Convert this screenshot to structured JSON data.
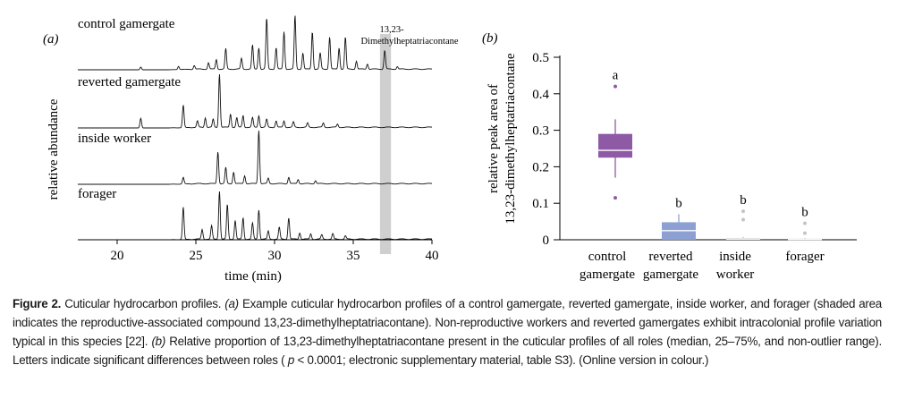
{
  "panel_a": {
    "label": "(a)",
    "ylabel": "relative abundance",
    "xlabel": "time (min)",
    "annotation_line1": "13,23-",
    "annotation_line2": "Dimethylheptatriacontane",
    "chart_data": {
      "type": "line",
      "title": "",
      "xlabel": "time (min)",
      "ylabel": "relative abundance",
      "xlim": [
        17.5,
        40
      ],
      "xticks": [
        20,
        25,
        30,
        35,
        40
      ],
      "shaded_range": [
        36.7,
        37.4
      ],
      "series": [
        {
          "name": "control gamergate",
          "peaks": [
            [
              21.5,
              0.05
            ],
            [
              23.9,
              0.06
            ],
            [
              24.9,
              0.07
            ],
            [
              25.8,
              0.12
            ],
            [
              26.3,
              0.18
            ],
            [
              26.9,
              0.38
            ],
            [
              27.9,
              0.2
            ],
            [
              28.6,
              0.45
            ],
            [
              29.0,
              0.4
            ],
            [
              29.5,
              0.95
            ],
            [
              30.1,
              0.4
            ],
            [
              30.6,
              0.7
            ],
            [
              31.3,
              1.0
            ],
            [
              31.8,
              0.3
            ],
            [
              32.4,
              0.7
            ],
            [
              32.9,
              0.3
            ],
            [
              33.5,
              0.6
            ],
            [
              34.1,
              0.4
            ],
            [
              34.5,
              0.6
            ],
            [
              35.2,
              0.15
            ],
            [
              35.9,
              0.1
            ],
            [
              37.0,
              0.35
            ],
            [
              37.8,
              0.05
            ]
          ]
        },
        {
          "name": "reverted gamergate",
          "peaks": [
            [
              21.5,
              0.18
            ],
            [
              24.2,
              0.42
            ],
            [
              25.1,
              0.12
            ],
            [
              25.6,
              0.18
            ],
            [
              26.1,
              0.15
            ],
            [
              26.5,
              1.0
            ],
            [
              27.2,
              0.25
            ],
            [
              27.6,
              0.18
            ],
            [
              28.0,
              0.22
            ],
            [
              28.6,
              0.18
            ],
            [
              29.0,
              0.22
            ],
            [
              29.5,
              0.15
            ],
            [
              30.1,
              0.12
            ],
            [
              30.6,
              0.12
            ],
            [
              31.2,
              0.1
            ],
            [
              32.1,
              0.08
            ],
            [
              33.1,
              0.08
            ],
            [
              34.0,
              0.06
            ]
          ]
        },
        {
          "name": "inside worker",
          "peaks": [
            [
              24.2,
              0.12
            ],
            [
              26.4,
              0.6
            ],
            [
              26.9,
              0.3
            ],
            [
              27.4,
              0.22
            ],
            [
              28.1,
              0.15
            ],
            [
              29.0,
              1.0
            ],
            [
              29.6,
              0.1
            ],
            [
              30.9,
              0.12
            ],
            [
              31.5,
              0.08
            ],
            [
              32.6,
              0.06
            ]
          ]
        },
        {
          "name": "forager",
          "peaks": [
            [
              24.2,
              0.6
            ],
            [
              25.4,
              0.18
            ],
            [
              26.0,
              0.25
            ],
            [
              26.5,
              0.9
            ],
            [
              27.0,
              0.65
            ],
            [
              27.5,
              0.35
            ],
            [
              28.0,
              0.4
            ],
            [
              28.6,
              0.3
            ],
            [
              29.0,
              0.55
            ],
            [
              29.6,
              0.15
            ],
            [
              30.3,
              0.22
            ],
            [
              30.9,
              0.4
            ],
            [
              31.6,
              0.12
            ],
            [
              32.3,
              0.1
            ],
            [
              33.0,
              0.08
            ],
            [
              33.7,
              0.1
            ],
            [
              34.5,
              0.06
            ]
          ]
        }
      ]
    }
  },
  "panel_b": {
    "label": "(b)",
    "ylabel_line1": "relative peak area of",
    "ylabel_line2": "13,23-dimethylheptatriacontane",
    "chart_data": {
      "type": "box",
      "title": "",
      "ylabel": "relative peak area of 13,23-dimethylheptatriacontane",
      "ylim": [
        0,
        0.5
      ],
      "yticks": [
        "0",
        "0.1",
        "0.2",
        "0.3",
        "0.4",
        "0.5"
      ],
      "categories": [
        "control gamergate",
        "reverted gamergate",
        "inside worker",
        "forager"
      ],
      "category_lines": [
        [
          "control",
          "gamergate"
        ],
        [
          "reverted",
          "gamergate"
        ],
        [
          "inside",
          "worker"
        ],
        [
          "forager",
          ""
        ]
      ],
      "significance_letters": [
        "a",
        "b",
        "b",
        "b"
      ],
      "boxes": [
        {
          "name": "control gamergate",
          "color": "#8e5aa6",
          "whisker_low": 0.17,
          "q1": 0.225,
          "median": 0.245,
          "q3": 0.29,
          "whisker_high": 0.33,
          "outliers": [
            0.42,
            0.115
          ]
        },
        {
          "name": "reverted gamergate",
          "color": "#8ca0d4",
          "whisker_low": 0.0,
          "q1": 0.0,
          "median": 0.025,
          "q3": 0.048,
          "whisker_high": 0.07,
          "outliers": []
        },
        {
          "name": "inside worker",
          "color": "#c4c4c4",
          "whisker_low": 0.0,
          "q1": 0.0,
          "median": 0.002,
          "q3": 0.005,
          "whisker_high": 0.008,
          "outliers": [
            0.078,
            0.055
          ]
        },
        {
          "name": "forager",
          "color": "#c4c4c4",
          "whisker_low": 0.0,
          "q1": 0.0,
          "median": 0.001,
          "q3": 0.003,
          "whisker_high": 0.005,
          "outliers": [
            0.045,
            0.018
          ]
        }
      ]
    }
  },
  "caption": {
    "label": "Figure 2.",
    "text_1": " Cuticular hydrocarbon profiles. ",
    "a_ref": "(a)",
    "text_2": " Example cuticular hydrocarbon profiles of a control gamergate, reverted gamergate, inside worker, and forager (shaded area indicates the reproductive-associated compound 13,23-dimethylheptatriacontane). Non-reproductive workers and reverted gamergates exhibit intracolonial profile variation typical in this species [22]. ",
    "b_ref": "(b)",
    "text_3": " Relative proportion of 13,23-dimethylheptatriacontane present in the cuticular profiles of all roles (median, 25–75%, and non-outlier range). Letters indicate significant differences between roles (",
    "p_symbol": "p",
    "text_4": " < 0.0001; electronic supplementary material, table S3). (Online version in colour.)"
  }
}
